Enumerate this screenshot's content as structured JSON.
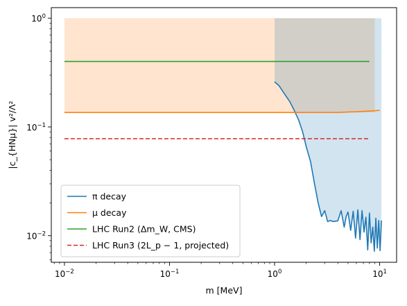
{
  "chart_data": {
    "type": "line",
    "xlabel": "m [MeV]",
    "ylabel": "|c_{HNμ}| v²/Λ²",
    "xscale": "log",
    "yscale": "log",
    "xlim": [
      0.0075,
      14.5
    ],
    "ylim": [
      0.0057,
      1.25
    ],
    "x_ticks": [
      {
        "value": 0.01,
        "base": "10",
        "exp": "−2"
      },
      {
        "value": 0.1,
        "base": "10",
        "exp": "−1"
      },
      {
        "value": 1,
        "base": "10",
        "exp": "0"
      },
      {
        "value": 10,
        "base": "10",
        "exp": "1"
      }
    ],
    "y_ticks": [
      {
        "value": 0.01,
        "base": "10",
        "exp": "−2"
      },
      {
        "value": 0.1,
        "base": "10",
        "exp": "−1"
      },
      {
        "value": 1,
        "base": "10",
        "exp": "0"
      }
    ],
    "grid": false,
    "legend_position": "lower-left",
    "series": [
      {
        "name": "π decay",
        "color": "#1f77b4",
        "dash": "solid",
        "x": [
          1.0,
          1.1,
          1.25,
          1.4,
          1.55,
          1.7,
          1.85,
          2.0,
          2.2,
          2.4,
          2.6,
          2.8,
          3.0,
          3.2,
          3.4,
          3.6,
          3.8,
          4.0,
          4.3,
          4.6,
          4.8,
          5.0,
          5.3,
          5.6,
          5.9,
          6.2,
          6.5,
          6.8,
          7.1,
          7.4,
          7.7,
          8.0,
          8.3,
          8.6,
          8.9,
          9.2,
          9.5,
          9.8,
          10.1,
          10.4
        ],
        "y": [
          0.26,
          0.24,
          0.2,
          0.17,
          0.14,
          0.115,
          0.09,
          0.066,
          0.048,
          0.03,
          0.02,
          0.015,
          0.017,
          0.0135,
          0.0138,
          0.0135,
          0.0136,
          0.0137,
          0.017,
          0.012,
          0.015,
          0.0165,
          0.0112,
          0.0168,
          0.0095,
          0.0173,
          0.0092,
          0.017,
          0.0108,
          0.0148,
          0.0074,
          0.0162,
          0.0086,
          0.012,
          0.0072,
          0.0145,
          0.0077,
          0.0138,
          0.0073,
          0.0138
        ]
      },
      {
        "name": "μ decay",
        "color": "#ff7f0e",
        "dash": "solid",
        "x": [
          0.01,
          0.1,
          1.0,
          4.0,
          6.0,
          8.0,
          10.0
        ],
        "y": [
          0.136,
          0.136,
          0.136,
          0.136,
          0.138,
          0.14,
          0.142
        ]
      },
      {
        "name": "LHC Run2 (Δm_W, CMS)",
        "color": "#2ca02c",
        "dash": "solid",
        "x": [
          0.01,
          8.0
        ],
        "y": [
          0.4,
          0.4
        ]
      },
      {
        "name": "LHC Run3 (2L_p − 1, projected)",
        "color": "#d62728",
        "dash": "dashed",
        "x": [
          0.01,
          8.0
        ],
        "y": [
          0.078,
          0.078
        ]
      }
    ],
    "shaded_regions": [
      {
        "series": "μ decay",
        "color": "#ff7f0e",
        "x": [
          0.01,
          1.0,
          8.0,
          9.0
        ],
        "upper": 1.0
      },
      {
        "series": "π decay",
        "color": "#1f77b4",
        "x_from": 1.0,
        "x_to": 10.4,
        "upper": 1.0
      }
    ]
  }
}
